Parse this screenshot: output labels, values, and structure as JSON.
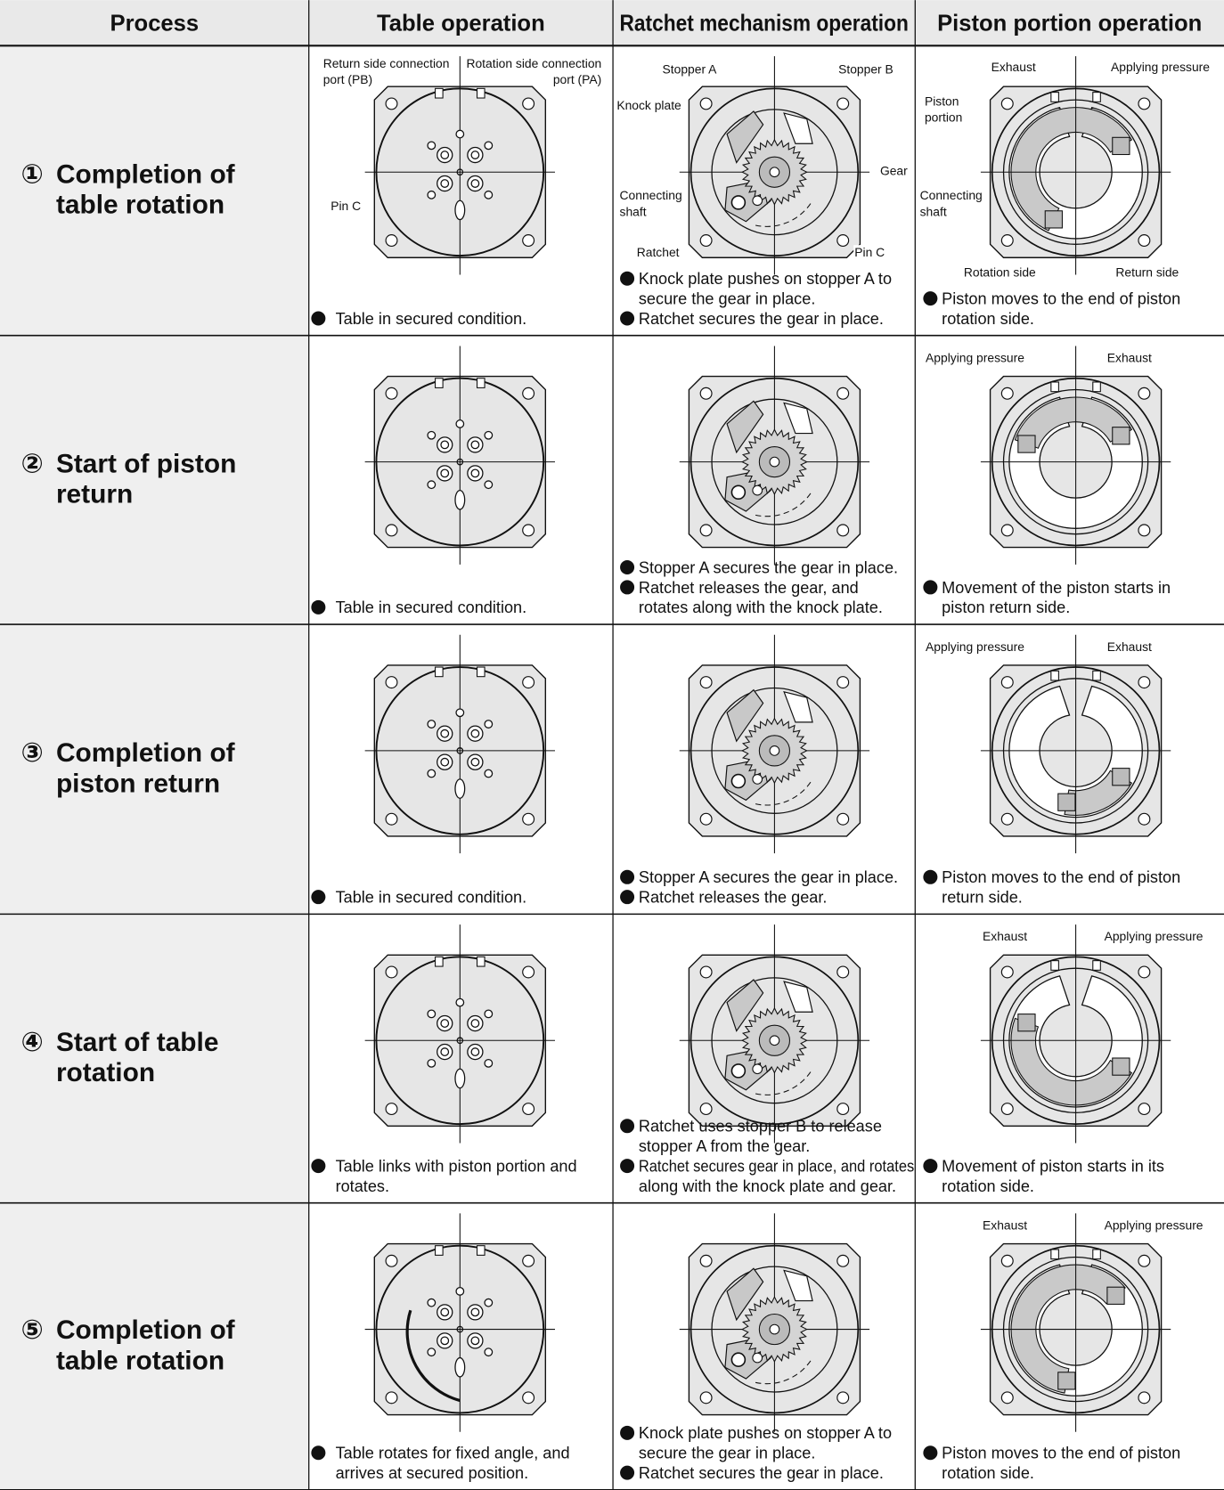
{
  "header": [
    "Process",
    "Table operation",
    "Ratchet mechanism operation",
    "Piston portion operation"
  ],
  "rows": [
    {
      "process": {
        "number": "①",
        "lines": [
          "Completion of",
          "table rotation"
        ]
      },
      "table": {
        "labels": [
          [
            "Return side connection",
            "port (PB)"
          ],
          [
            "Rotation side connection",
            "port (PA)"
          ],
          [
            "Pin C"
          ]
        ],
        "notes": [
          [
            "Table in secured condition."
          ]
        ]
      },
      "ratchet": {
        "labels": [
          [
            "Stopper A"
          ],
          [
            "Stopper B"
          ],
          [
            "Knock plate"
          ],
          [
            "Gear"
          ],
          [
            "Connecting",
            "shaft"
          ],
          [
            "Ratchet"
          ],
          [
            "Pin C"
          ]
        ],
        "notes": [
          [
            "Knock plate pushes on stopper A to",
            "secure the gear in place."
          ],
          [
            "Ratchet secures the gear in place."
          ]
        ]
      },
      "piston": {
        "labels": [
          [
            "Exhaust"
          ],
          [
            "Applying pressure"
          ],
          [
            "Piston",
            "portion"
          ],
          [
            "Connecting",
            "shaft"
          ],
          [
            "Rotation side"
          ],
          [
            "Return side"
          ]
        ],
        "notes": [
          [
            "Piston moves to the end of piston",
            "rotation side."
          ]
        ]
      }
    },
    {
      "process": {
        "number": "②",
        "lines": [
          "Start of piston",
          "return"
        ]
      },
      "table": {
        "labels": [],
        "notes": [
          [
            "Table in secured condition."
          ]
        ]
      },
      "ratchet": {
        "labels": [],
        "notes": [
          [
            "Stopper A secures the gear in place."
          ],
          [
            "Ratchet releases the gear, and",
            "rotates along with the knock plate."
          ]
        ]
      },
      "piston": {
        "labels": [
          [
            "Applying pressure"
          ],
          [
            "Exhaust"
          ]
        ],
        "notes": [
          [
            "Movement of the piston starts in",
            "piston return side."
          ]
        ]
      }
    },
    {
      "process": {
        "number": "③",
        "lines": [
          "Completion of",
          "piston return"
        ]
      },
      "table": {
        "labels": [],
        "notes": [
          [
            "Table in secured condition."
          ]
        ]
      },
      "ratchet": {
        "labels": [],
        "notes": [
          [
            "Stopper A secures the gear in place."
          ],
          [
            "Ratchet releases the gear."
          ]
        ]
      },
      "piston": {
        "labels": [
          [
            "Applying pressure"
          ],
          [
            "Exhaust"
          ]
        ],
        "notes": [
          [
            "Piston moves to the end of piston",
            "return side."
          ]
        ]
      }
    },
    {
      "process": {
        "number": "④",
        "lines": [
          "Start of table",
          "rotation"
        ]
      },
      "table": {
        "labels": [],
        "notes": [
          [
            "Table links with piston portion and",
            "rotates."
          ]
        ]
      },
      "ratchet": {
        "labels": [],
        "notes": [
          [
            "Ratchet uses stopper B to release",
            "stopper A from the gear."
          ],
          [
            "Ratchet secures gear in place, and rotates",
            "along with the knock plate and gear."
          ]
        ]
      },
      "piston": {
        "labels": [
          [
            "Exhaust"
          ],
          [
            "Applying pressure"
          ]
        ],
        "notes": [
          [
            "Movement of piston starts in its",
            "rotation side."
          ]
        ]
      }
    },
    {
      "process": {
        "number": "⑤",
        "lines": [
          "Completion of",
          "table rotation"
        ]
      },
      "table": {
        "labels": [],
        "notes": [
          [
            "Table rotates for fixed angle, and",
            "arrives at secured position."
          ]
        ]
      },
      "ratchet": {
        "labels": [],
        "notes": [
          [
            "Knock plate pushes on stopper A to",
            "secure the gear in place."
          ],
          [
            "Ratchet secures the gear in place."
          ]
        ]
      },
      "piston": {
        "labels": [
          [
            "Exhaust"
          ],
          [
            "Applying pressure"
          ]
        ],
        "notes": [
          [
            "Piston moves to the end of piston",
            "rotation side."
          ]
        ]
      }
    }
  ]
}
